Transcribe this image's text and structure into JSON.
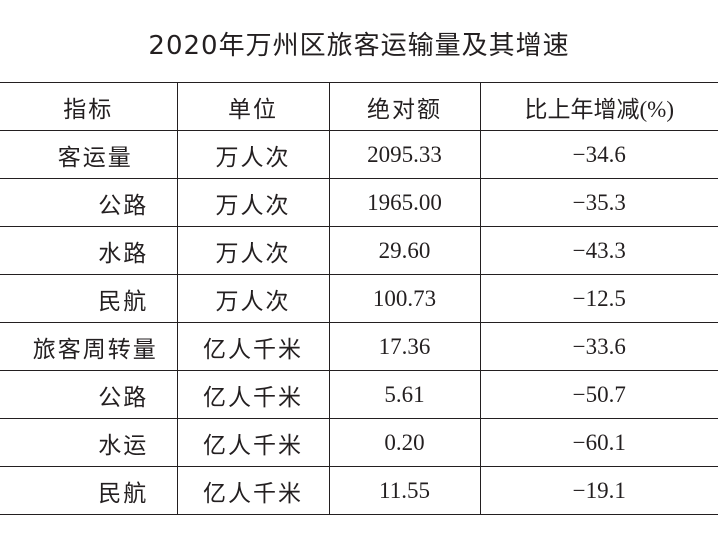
{
  "title": "2020年万州区旅客运输量及其增速",
  "table": {
    "headers": {
      "indicator": "指标",
      "unit": "单位",
      "absolute": "绝对额",
      "change": "比上年增减(%)"
    },
    "rows": [
      {
        "indicator": "客运量",
        "level": 0,
        "unit": "万人次",
        "absolute": "2095.33",
        "change": "−34.6"
      },
      {
        "indicator": "公路",
        "level": 1,
        "unit": "万人次",
        "absolute": "1965.00",
        "change": "−35.3"
      },
      {
        "indicator": "水路",
        "level": 1,
        "unit": "万人次",
        "absolute": "29.60",
        "change": "−43.3"
      },
      {
        "indicator": "民航",
        "level": 1,
        "unit": "万人次",
        "absolute": "100.73",
        "change": "−12.5"
      },
      {
        "indicator": "旅客周转量",
        "level": 0,
        "unit": "亿人千米",
        "absolute": "17.36",
        "change": "−33.6"
      },
      {
        "indicator": "公路",
        "level": 1,
        "unit": "亿人千米",
        "absolute": "5.61",
        "change": "−50.7"
      },
      {
        "indicator": "水运",
        "level": 1,
        "unit": "亿人千米",
        "absolute": "0.20",
        "change": "−60.1"
      },
      {
        "indicator": "民航",
        "level": 1,
        "unit": "亿人千米",
        "absolute": "11.55",
        "change": "−19.1"
      }
    ]
  }
}
